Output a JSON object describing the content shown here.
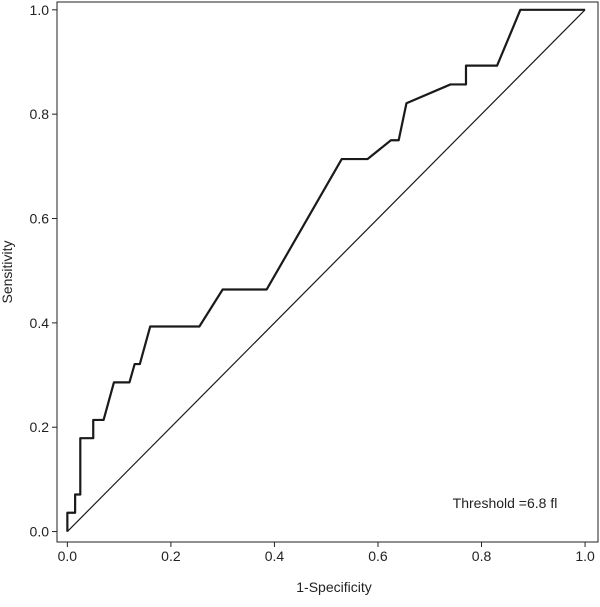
{
  "chart_data": {
    "type": "line",
    "x_label": "1-Specificity",
    "y_label": "Sensitivity",
    "annotation": "Threshold =6.8 fl",
    "xlim": [
      -0.02,
      1.025
    ],
    "ylim": [
      -0.02,
      1.015
    ],
    "xticks": [
      {
        "value": 0,
        "label": "0.0"
      },
      0.2,
      0.4,
      0.6,
      0.8,
      {
        "value": 1,
        "label": "1.0"
      }
    ],
    "yticks": [
      {
        "value": 0,
        "label": "0.0"
      },
      0.2,
      0.4,
      0.6,
      0.8,
      {
        "value": 1,
        "label": "1.0"
      }
    ],
    "series": [
      {
        "color": "#1a1a1a",
        "x": [
          0,
          0,
          0.015,
          0.015,
          0.025,
          0.025,
          0.05,
          0.05,
          0.07,
          0.09,
          0.12,
          0.13,
          0.14,
          0.16,
          0.255,
          0.3,
          0.385,
          0.53,
          0.58,
          0.625,
          0.64,
          0.655,
          0.74,
          0.77,
          0.77,
          0.83,
          0.86,
          0.875,
          1
        ],
        "values": [
          0,
          0.036,
          0.036,
          0.071,
          0.071,
          0.179,
          0.179,
          0.214,
          0.214,
          0.286,
          0.286,
          0.321,
          0.321,
          0.393,
          0.393,
          0.464,
          0.464,
          0.714,
          0.714,
          0.75,
          0.75,
          0.821,
          0.857,
          0.857,
          0.893,
          0.893,
          0.964,
          1,
          1
        ]
      },
      {
        "color": "#1a1a1a",
        "x": [
          0,
          1
        ],
        "values": [
          0,
          1
        ]
      }
    ]
  }
}
